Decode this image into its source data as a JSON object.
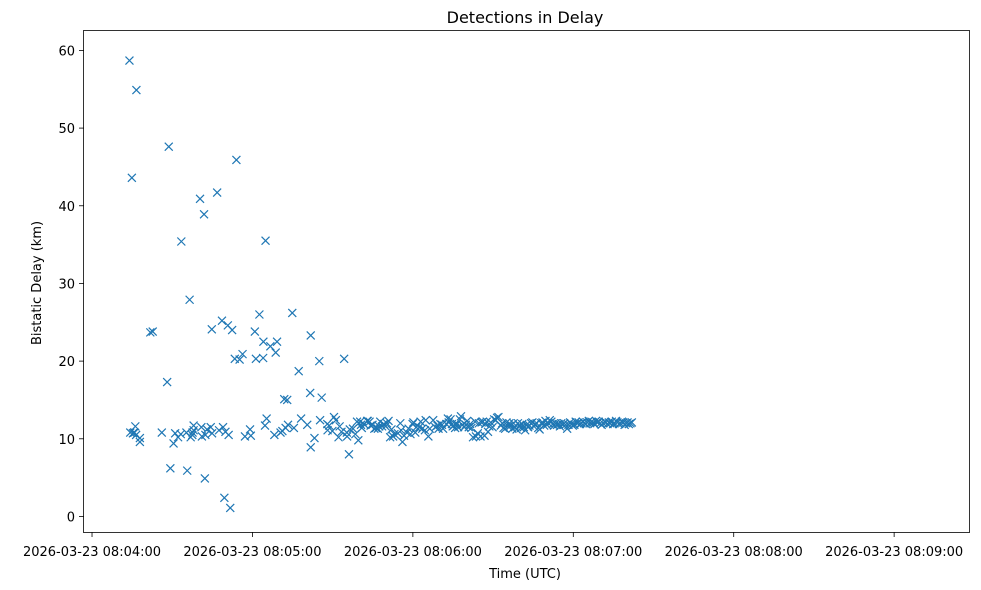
{
  "chart_data": {
    "type": "scatter",
    "title": "Detections in Delay",
    "xlabel": "Time (UTC)",
    "ylabel": "Bistatic Delay (km)",
    "marker": "x",
    "color": "#1f77b4",
    "grid": false,
    "legend": "none",
    "xlim": [
      "2026-03-23 08:03:57",
      "2026-03-23 08:09:28"
    ],
    "ylim": [
      -2,
      62.5
    ],
    "x_ticks": [
      "2026-03-23 08:04:00",
      "2026-03-23 08:05:00",
      "2026-03-23 08:06:00",
      "2026-03-23 08:07:00",
      "2026-03-23 08:08:00",
      "2026-03-23 08:09:00"
    ],
    "y_ticks": [
      0,
      10,
      20,
      30,
      40,
      50,
      60
    ],
    "time_origin": "2026-03-23 08:04:00",
    "x_units": "seconds since time_origin",
    "points": [
      [
        14.0,
        58.7
      ],
      [
        14.9,
        43.6
      ],
      [
        14.3,
        10.8
      ],
      [
        15.3,
        10.7
      ],
      [
        15.7,
        10.8
      ],
      [
        15.9,
        10.8
      ],
      [
        16.6,
        54.9
      ],
      [
        16.2,
        11.6
      ],
      [
        16.5,
        10.5
      ],
      [
        17.9,
        9.6
      ],
      [
        17.9,
        10.1
      ],
      [
        21.8,
        23.7
      ],
      [
        22.7,
        23.8
      ],
      [
        26.1,
        10.8
      ],
      [
        28.1,
        17.3
      ],
      [
        28.7,
        47.6
      ],
      [
        29.3,
        6.2
      ],
      [
        30.5,
        9.4
      ],
      [
        31.1,
        10.7
      ],
      [
        32.2,
        10.2
      ],
      [
        33.2,
        10.6
      ],
      [
        33.4,
        35.4
      ],
      [
        35.3,
        10.8
      ],
      [
        35.6,
        5.9
      ],
      [
        36.5,
        27.9
      ],
      [
        36.9,
        10.2
      ],
      [
        37.6,
        10.8
      ],
      [
        37.5,
        10.5
      ],
      [
        38.0,
        11.1
      ],
      [
        38.0,
        11.7
      ],
      [
        40.4,
        40.9
      ],
      [
        40.9,
        11.5
      ],
      [
        41.1,
        10.3
      ],
      [
        41.9,
        38.9
      ],
      [
        42.2,
        4.9
      ],
      [
        42.4,
        10.5
      ],
      [
        43.0,
        11.2
      ],
      [
        44.4,
        11.5
      ],
      [
        44.9,
        10.7
      ],
      [
        44.8,
        24.1
      ],
      [
        46.8,
        41.7
      ],
      [
        47.5,
        11.1
      ],
      [
        48.6,
        25.2
      ],
      [
        49.0,
        11.5
      ],
      [
        49.5,
        2.4
      ],
      [
        49.9,
        10.9
      ],
      [
        50.8,
        24.6
      ],
      [
        51.1,
        10.5
      ],
      [
        51.7,
        1.1
      ],
      [
        52.4,
        24.0
      ],
      [
        53.4,
        20.3
      ],
      [
        54.0,
        45.9
      ],
      [
        55.2,
        20.2
      ],
      [
        56.3,
        20.9
      ],
      [
        57.2,
        10.3
      ],
      [
        59.1,
        11.2
      ],
      [
        59.4,
        10.4
      ],
      [
        60.9,
        23.8
      ],
      [
        61.3,
        20.3
      ],
      [
        62.6,
        26.0
      ],
      [
        64.1,
        22.5
      ],
      [
        64.0,
        20.4
      ],
      [
        64.9,
        35.5
      ],
      [
        64.7,
        11.7
      ],
      [
        65.3,
        12.6
      ],
      [
        66.7,
        21.9
      ],
      [
        68.7,
        21.1
      ],
      [
        68.2,
        10.5
      ],
      [
        69.2,
        22.5
      ],
      [
        70.5,
        10.8
      ],
      [
        71.2,
        11.0
      ],
      [
        71.9,
        15.1
      ],
      [
        72.4,
        11.4
      ],
      [
        73.0,
        15.0
      ],
      [
        73.3,
        11.8
      ],
      [
        74.9,
        26.2
      ],
      [
        75.5,
        11.4
      ],
      [
        77.3,
        18.7
      ],
      [
        78.2,
        12.6
      ],
      [
        80.5,
        11.8
      ],
      [
        81.6,
        15.9
      ],
      [
        81.8,
        23.3
      ],
      [
        81.8,
        8.9
      ],
      [
        83.2,
        10.1
      ],
      [
        85.0,
        20.0
      ],
      [
        85.3,
        12.4
      ],
      [
        85.9,
        15.3
      ],
      [
        88.0,
        11.9
      ],
      [
        88.1,
        11.1
      ],
      [
        88.7,
        11.7
      ],
      [
        89.9,
        11.0
      ],
      [
        90.5,
        12.8
      ],
      [
        91.2,
        12.4
      ],
      [
        92.2,
        10.2
      ],
      [
        92.6,
        11.6
      ],
      [
        93.3,
        10.9
      ],
      [
        94.3,
        20.3
      ],
      [
        95.3,
        10.8
      ],
      [
        95.4,
        10.3
      ],
      [
        96.1,
        8.0
      ],
      [
        96.4,
        11.2
      ],
      [
        97.6,
        11.3
      ],
      [
        98.5,
        10.6
      ],
      [
        99.1,
        12.2
      ],
      [
        99.6,
        9.8
      ],
      [
        100.3,
        12.2
      ],
      [
        100.6,
        11.8
      ],
      [
        100.9,
        11.4
      ],
      [
        101.7,
        11.9
      ],
      [
        102.9,
        12.3
      ],
      [
        103.1,
        12.3
      ],
      [
        103.8,
        12.2
      ],
      [
        104.2,
        11.7
      ],
      [
        104.9,
        11.8
      ],
      [
        105.6,
        11.3
      ],
      [
        106.2,
        11.4
      ],
      [
        106.9,
        11.3
      ],
      [
        107.4,
        11.6
      ],
      [
        107.8,
        12.2
      ],
      [
        108.5,
        11.6
      ],
      [
        109.1,
        11.9
      ],
      [
        109.8,
        11.6
      ],
      [
        110.3,
        12.0
      ],
      [
        110.9,
        12.3
      ],
      [
        111.5,
        10.2
      ],
      [
        112.0,
        11.2
      ],
      [
        112.6,
        10.3
      ],
      [
        113.1,
        10.6
      ],
      [
        114.4,
        10.7
      ],
      [
        115.3,
        12.0
      ],
      [
        115.6,
        11.1
      ],
      [
        116.1,
        9.6
      ],
      [
        116.7,
        10.4
      ],
      [
        117.8,
        10.8
      ],
      [
        118.4,
        11.3
      ],
      [
        119.1,
        10.6
      ],
      [
        119.9,
        11.9
      ],
      [
        120.2,
        12.1
      ],
      [
        120.9,
        10.8
      ],
      [
        121.3,
        11.5
      ],
      [
        122.4,
        11.5
      ],
      [
        122.9,
        12.2
      ],
      [
        123.5,
        11.3
      ],
      [
        124.5,
        11.1
      ],
      [
        124.8,
        12.4
      ],
      [
        125.8,
        10.3
      ],
      [
        126.3,
        11.3
      ],
      [
        127.6,
        12.4
      ],
      [
        128.4,
        11.5
      ],
      [
        129.2,
        11.7
      ],
      [
        129.6,
        11.3
      ],
      [
        130.3,
        11.9
      ],
      [
        130.9,
        11.8
      ],
      [
        131.3,
        11.3
      ],
      [
        132.5,
        11.9
      ],
      [
        133.1,
        12.6
      ],
      [
        133.4,
        12.1
      ],
      [
        134.1,
        12.5
      ],
      [
        134.6,
        11.9
      ],
      [
        134.9,
        11.6
      ],
      [
        135.3,
        11.7
      ],
      [
        135.8,
        11.4
      ],
      [
        136.5,
        11.9
      ],
      [
        136.9,
        11.5
      ],
      [
        137.6,
        12.5
      ],
      [
        138.0,
        12.9
      ],
      [
        138.5,
        11.8
      ],
      [
        139.2,
        11.5
      ],
      [
        139.8,
        11.8
      ],
      [
        140.3,
        12.3
      ],
      [
        140.9,
        11.5
      ],
      [
        141.4,
        11.9
      ],
      [
        141.9,
        11.4
      ],
      [
        142.5,
        10.2
      ],
      [
        143.3,
        12.2
      ],
      [
        143.6,
        10.3
      ],
      [
        144.3,
        10.7
      ],
      [
        144.7,
        12.0
      ],
      [
        145.3,
        10.3
      ],
      [
        145.7,
        12.1
      ],
      [
        146.2,
        12.2
      ],
      [
        146.8,
        10.4
      ],
      [
        147.1,
        11.9
      ],
      [
        147.6,
        12.2
      ],
      [
        148.1,
        10.9
      ],
      [
        148.6,
        11.6
      ],
      [
        149.1,
        12.1
      ],
      [
        149.8,
        11.5
      ],
      [
        150.4,
        12.5
      ],
      [
        151.0,
        12.4
      ],
      [
        151.5,
        12.7
      ],
      [
        152.0,
        12.8
      ],
      [
        152.9,
        11.7
      ],
      [
        153.4,
        12.0
      ],
      [
        153.9,
        11.4
      ],
      [
        154.5,
        11.3
      ],
      [
        155.0,
        12.1
      ],
      [
        155.6,
        11.6
      ],
      [
        156.1,
        12.0
      ],
      [
        156.6,
        11.7
      ],
      [
        157.2,
        11.3
      ],
      [
        157.7,
        12.0
      ],
      [
        158.2,
        11.5
      ],
      [
        158.8,
        11.2
      ],
      [
        159.3,
        12.0
      ],
      [
        159.9,
        11.7
      ],
      [
        160.4,
        11.4
      ],
      [
        160.9,
        11.9
      ],
      [
        161.5,
        11.5
      ],
      [
        162.0,
        11.1
      ],
      [
        162.6,
        11.8
      ],
      [
        163.1,
        11.5
      ],
      [
        163.6,
        11.7
      ],
      [
        164.2,
        12.0
      ],
      [
        164.7,
        12.1
      ],
      [
        165.3,
        11.6
      ],
      [
        165.8,
        11.9
      ],
      [
        166.3,
        12.0
      ],
      [
        166.9,
        11.4
      ],
      [
        167.4,
        11.2
      ],
      [
        168.0,
        12.0
      ],
      [
        168.5,
        12.1
      ],
      [
        169.1,
        11.7
      ],
      [
        169.6,
        12.3
      ],
      [
        170.1,
        11.8
      ],
      [
        170.7,
        12.0
      ],
      [
        171.2,
        12.4
      ],
      [
        171.8,
        12.2
      ],
      [
        172.3,
        11.9
      ],
      [
        172.8,
        11.7
      ],
      [
        173.4,
        12.0
      ],
      [
        173.9,
        11.8
      ],
      [
        174.5,
        11.9
      ],
      [
        175.0,
        11.6
      ],
      [
        175.5,
        12.0
      ],
      [
        176.1,
        11.8
      ],
      [
        176.6,
        12.0
      ],
      [
        177.1,
        11.8
      ],
      [
        177.7,
        11.3
      ],
      [
        178.2,
        11.8
      ],
      [
        178.8,
        12.1
      ],
      [
        179.3,
        11.9
      ],
      [
        179.8,
        11.7
      ],
      [
        180.4,
        11.8
      ],
      [
        180.9,
        12.2
      ],
      [
        181.5,
        12.0
      ],
      [
        182.0,
        12.1
      ],
      [
        182.5,
        11.9
      ],
      [
        183.1,
        12.0
      ],
      [
        183.6,
        12.2
      ],
      [
        184.1,
        12.0
      ],
      [
        184.7,
        11.9
      ],
      [
        185.2,
        12.1
      ],
      [
        185.8,
        12.3
      ],
      [
        186.3,
        12.0
      ],
      [
        186.8,
        12.2
      ],
      [
        187.4,
        12.1
      ],
      [
        187.9,
        11.9
      ],
      [
        188.5,
        12.3
      ],
      [
        189.0,
        12.1
      ],
      [
        189.5,
        12.2
      ],
      [
        190.1,
        12.0
      ],
      [
        190.6,
        11.8
      ],
      [
        191.2,
        12.0
      ],
      [
        191.7,
        12.2
      ],
      [
        192.2,
        12.1
      ],
      [
        192.8,
        11.9
      ],
      [
        193.3,
        12.1
      ],
      [
        193.8,
        12.0
      ],
      [
        194.4,
        12.2
      ],
      [
        194.9,
        11.9
      ],
      [
        195.5,
        12.0
      ],
      [
        196.0,
        12.3
      ],
      [
        196.5,
        12.1
      ],
      [
        197.1,
        11.9
      ],
      [
        197.6,
        12.0
      ],
      [
        198.2,
        12.2
      ],
      [
        198.7,
        12.1
      ],
      [
        199.2,
        11.8
      ],
      [
        199.8,
        12.0
      ],
      [
        200.3,
        12.1
      ],
      [
        200.8,
        11.9
      ],
      [
        201.4,
        12.0
      ],
      [
        201.9,
        12.1
      ]
    ]
  }
}
